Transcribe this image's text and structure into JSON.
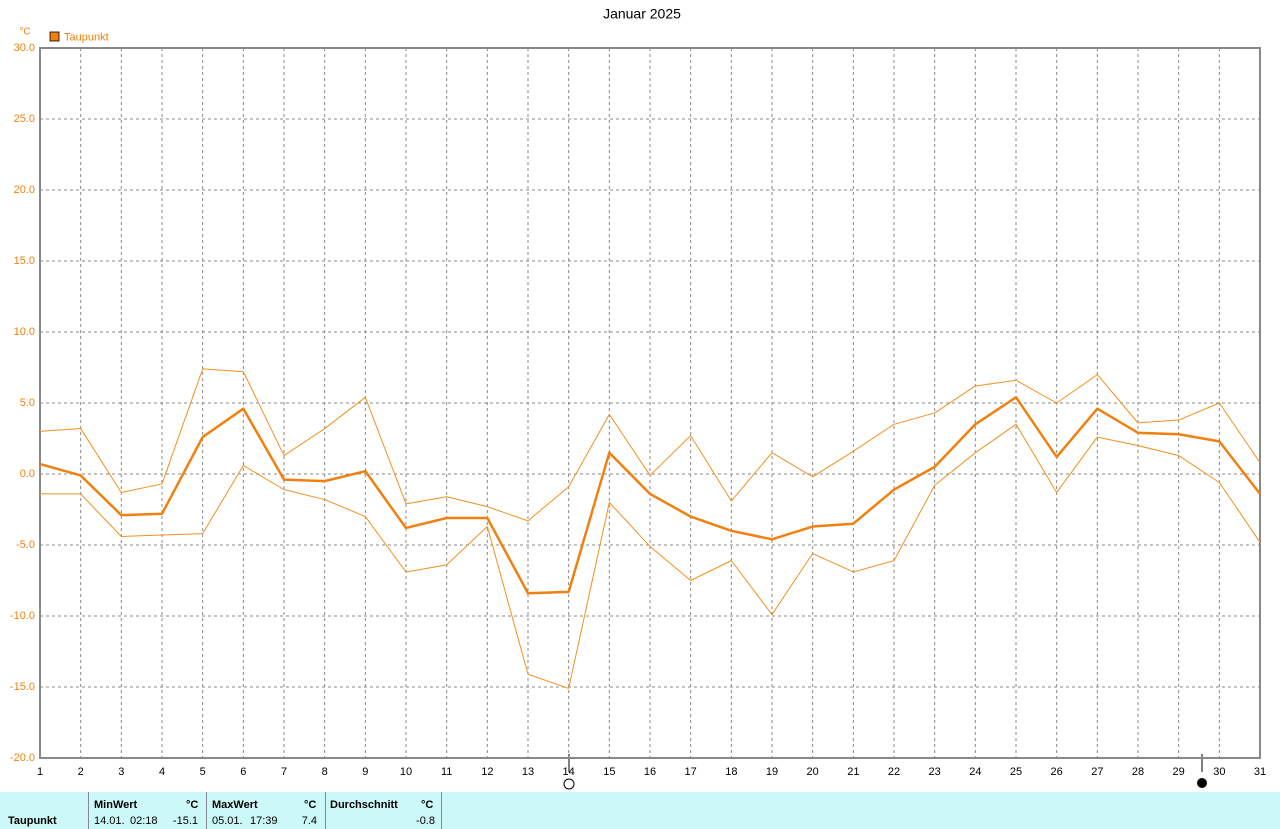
{
  "chart_data": {
    "type": "line",
    "title": "Januar 2025",
    "y_label": "°C",
    "x": [
      1,
      2,
      3,
      4,
      5,
      6,
      7,
      8,
      9,
      10,
      11,
      12,
      13,
      14,
      15,
      16,
      17,
      18,
      19,
      20,
      21,
      22,
      23,
      24,
      25,
      26,
      27,
      28,
      29,
      30,
      31
    ],
    "xlim": [
      1,
      31
    ],
    "ylim": [
      -20,
      30
    ],
    "yticks": [
      {
        "value": 30,
        "label": "30.0"
      },
      {
        "value": 25,
        "label": "25.0"
      },
      {
        "value": 20,
        "label": "20.0"
      },
      {
        "value": 15,
        "label": "15.0"
      },
      {
        "value": 10,
        "label": "10.0"
      },
      {
        "value": 5,
        "label": "5.0"
      },
      {
        "value": 0,
        "label": "0.0"
      },
      {
        "value": -5,
        "label": "-5.0"
      },
      {
        "value": -10,
        "label": "-10.0"
      },
      {
        "value": -15,
        "label": "-15.0"
      },
      {
        "value": -20,
        "label": "-20.0"
      }
    ],
    "grid": true,
    "legend": "top-left",
    "series": [
      {
        "name": "Taupunkt",
        "color": "#f08010",
        "width": 2.5,
        "values": [
          0.7,
          -0.1,
          -2.9,
          -2.8,
          2.6,
          4.6,
          -0.4,
          -0.5,
          0.2,
          -3.8,
          -3.1,
          -3.1,
          -8.4,
          -8.3,
          1.5,
          -1.4,
          -3.0,
          -4.0,
          -4.6,
          -3.7,
          -3.5,
          -1.1,
          0.5,
          3.5,
          5.4,
          1.2,
          4.6,
          2.9,
          2.8,
          2.3,
          -1.4
        ]
      },
      {
        "color": "#f29020",
        "width": 1,
        "values": [
          3.0,
          3.2,
          -1.3,
          -0.7,
          7.4,
          7.2,
          1.3,
          3.2,
          5.4,
          -2.1,
          -1.6,
          -2.3,
          -3.3,
          -0.9,
          4.2,
          -0.1,
          2.7,
          -1.9,
          1.5,
          -0.2,
          1.6,
          3.5,
          4.3,
          6.2,
          6.6,
          5.0,
          7.0,
          3.6,
          3.8,
          5.0,
          0.8
        ]
      },
      {
        "color": "#f29020",
        "width": 1,
        "values": [
          -1.4,
          -1.4,
          -4.4,
          -4.3,
          -4.2,
          0.6,
          -1.1,
          -1.8,
          -3.0,
          -6.9,
          -6.4,
          -3.7,
          -14.1,
          -15.1,
          -2.0,
          -5.1,
          -7.5,
          -6.1,
          -9.9,
          -5.6,
          -6.9,
          -6.1,
          -0.8,
          1.5,
          3.5,
          -1.3,
          2.6,
          2.0,
          1.3,
          -0.6,
          -4.8
        ]
      }
    ]
  },
  "summary": {
    "name": "Taupunkt",
    "min": {
      "label": "MinWert",
      "unit": "°C",
      "date": "14.01.",
      "time": "02:18",
      "value": -15.1
    },
    "max": {
      "label": "MaxWert",
      "unit": "°C",
      "date": "05.01.",
      "time": "17:39",
      "value": 7.4
    },
    "avg": {
      "label": "Durchschnitt",
      "unit": "°C",
      "value": -0.8
    }
  }
}
